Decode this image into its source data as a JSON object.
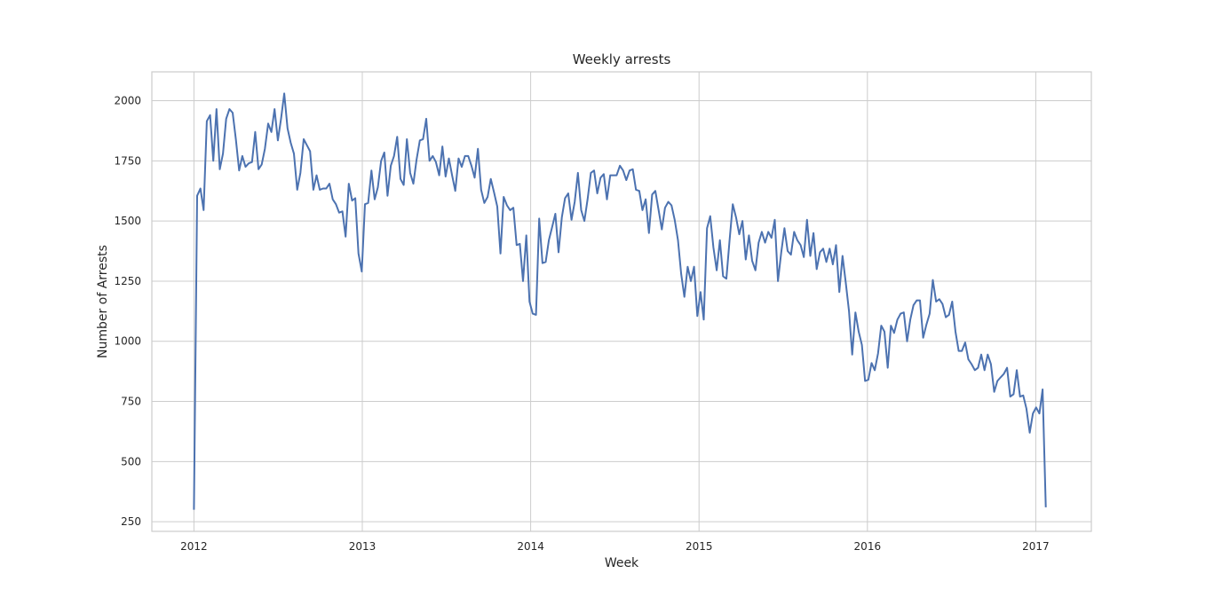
{
  "chart_data": {
    "type": "line",
    "title": "Weekly arrests",
    "xlabel": "Week",
    "ylabel": "Number of Arrests",
    "x_tick_labels": [
      "2012",
      "2013",
      "2014",
      "2015",
      "2016",
      "2017"
    ],
    "y_tick_labels": [
      "250",
      "500",
      "750",
      "1000",
      "1250",
      "1500",
      "1750",
      "2000"
    ],
    "x_start": "2012-01-01",
    "x_step_days": 7,
    "xlim_years": [
      2011.75,
      2017.33
    ],
    "ylim": [
      210,
      2120
    ],
    "grid": true,
    "legend": "none",
    "colors": {
      "line": "#4c72b0",
      "grid": "#cccccc",
      "text": "#262626"
    },
    "values": [
      300,
      1605,
      1635,
      1545,
      1915,
      1940,
      1750,
      1965,
      1715,
      1780,
      1925,
      1965,
      1950,
      1840,
      1710,
      1770,
      1725,
      1740,
      1745,
      1870,
      1715,
      1735,
      1800,
      1905,
      1870,
      1965,
      1835,
      1925,
      2030,
      1885,
      1825,
      1780,
      1630,
      1700,
      1840,
      1815,
      1790,
      1630,
      1690,
      1630,
      1635,
      1635,
      1655,
      1590,
      1570,
      1535,
      1540,
      1435,
      1655,
      1585,
      1595,
      1365,
      1290,
      1570,
      1575,
      1710,
      1590,
      1640,
      1750,
      1785,
      1605,
      1730,
      1770,
      1850,
      1675,
      1650,
      1840,
      1700,
      1655,
      1755,
      1835,
      1840,
      1925,
      1750,
      1770,
      1745,
      1690,
      1810,
      1685,
      1760,
      1690,
      1625,
      1760,
      1725,
      1770,
      1770,
      1730,
      1680,
      1800,
      1630,
      1575,
      1600,
      1675,
      1620,
      1560,
      1365,
      1600,
      1565,
      1545,
      1555,
      1400,
      1405,
      1250,
      1440,
      1165,
      1115,
      1110,
      1510,
      1325,
      1330,
      1420,
      1475,
      1530,
      1370,
      1515,
      1595,
      1615,
      1505,
      1580,
      1700,
      1545,
      1500,
      1590,
      1700,
      1710,
      1615,
      1680,
      1695,
      1590,
      1690,
      1690,
      1690,
      1730,
      1710,
      1670,
      1710,
      1715,
      1630,
      1625,
      1545,
      1590,
      1450,
      1610,
      1625,
      1545,
      1465,
      1555,
      1580,
      1565,
      1505,
      1420,
      1280,
      1185,
      1310,
      1250,
      1310,
      1105,
      1205,
      1090,
      1470,
      1520,
      1390,
      1295,
      1420,
      1270,
      1260,
      1420,
      1570,
      1515,
      1445,
      1500,
      1340,
      1440,
      1335,
      1295,
      1410,
      1455,
      1410,
      1455,
      1430,
      1505,
      1250,
      1370,
      1470,
      1375,
      1360,
      1455,
      1420,
      1400,
      1350,
      1505,
      1355,
      1450,
      1300,
      1370,
      1385,
      1330,
      1385,
      1320,
      1400,
      1205,
      1355,
      1245,
      1125,
      945,
      1120,
      1040,
      985,
      835,
      840,
      910,
      880,
      950,
      1065,
      1040,
      890,
      1065,
      1035,
      1090,
      1115,
      1120,
      1000,
      1090,
      1150,
      1170,
      1170,
      1015,
      1070,
      1115,
      1255,
      1165,
      1175,
      1155,
      1100,
      1110,
      1165,
      1040,
      960,
      960,
      995,
      925,
      905,
      880,
      890,
      945,
      880,
      945,
      905,
      790,
      835,
      850,
      865,
      890,
      770,
      780,
      880,
      770,
      775,
      720,
      620,
      700,
      725,
      700,
      800,
      310
    ]
  }
}
